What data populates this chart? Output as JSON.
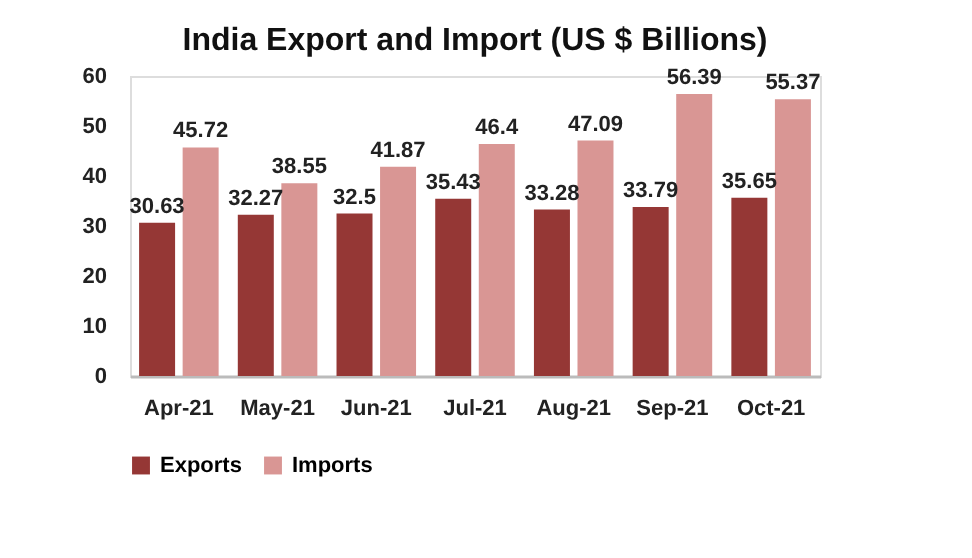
{
  "chart_data": {
    "type": "bar",
    "title": "India Export and Import (US $ Billions)",
    "categories": [
      "Apr-21",
      "May-21",
      "Jun-21",
      "Jul-21",
      "Aug-21",
      "Sep-21",
      "Oct-21"
    ],
    "series": [
      {
        "name": "Exports",
        "color": "#953735",
        "values": [
          30.63,
          32.27,
          32.5,
          35.43,
          33.28,
          33.79,
          35.65
        ]
      },
      {
        "name": "Imports",
        "color": "#d99694",
        "values": [
          45.72,
          38.55,
          41.87,
          46.4,
          47.09,
          56.39,
          55.37
        ]
      }
    ],
    "ylim": [
      0,
      60
    ],
    "yticks": [
      0,
      10,
      20,
      30,
      40,
      50,
      60
    ],
    "grid": false,
    "legend": "bottom",
    "data_labels": true
  }
}
